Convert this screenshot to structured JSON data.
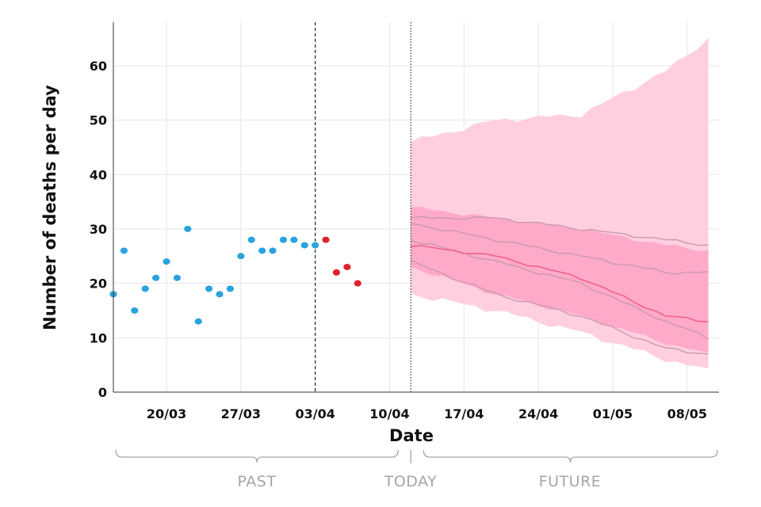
{
  "chart_data": {
    "type": "scatter",
    "title": "",
    "xlabel": "Date",
    "ylabel": "Number of deaths per day",
    "x_tick_labels": [
      "20/03",
      "27/03",
      "03/04",
      "10/04",
      "17/04",
      "24/04",
      "01/05",
      "08/05"
    ],
    "x_tick_dates": [
      "2020-03-20",
      "2020-03-27",
      "2020-04-03",
      "2020-04-10",
      "2020-04-17",
      "2020-04-24",
      "2020-05-01",
      "2020-05-08"
    ],
    "y_ticks": [
      0,
      10,
      20,
      30,
      40,
      50,
      60
    ],
    "xlim": [
      "2020-03-15",
      "2020-05-11"
    ],
    "ylim": [
      0,
      68
    ],
    "grid": true,
    "cutoff_date": "2020-04-03",
    "today_date": "2020-04-12",
    "colors": {
      "observed": "#29a3df",
      "recent": "#e0202a",
      "band_outer": "#ffcfe0",
      "band_inner": "#ffaac8",
      "median": "#f0628f",
      "quartile_lines": "#c89aaa"
    },
    "series": [
      {
        "name": "observed",
        "points": [
          [
            "2020-03-15",
            18
          ],
          [
            "2020-03-16",
            26
          ],
          [
            "2020-03-17",
            15
          ],
          [
            "2020-03-18",
            19
          ],
          [
            "2020-03-19",
            21
          ],
          [
            "2020-03-20",
            24
          ],
          [
            "2020-03-21",
            21
          ],
          [
            "2020-03-22",
            30
          ],
          [
            "2020-03-23",
            13
          ],
          [
            "2020-03-24",
            19
          ],
          [
            "2020-03-25",
            18
          ],
          [
            "2020-03-26",
            19
          ],
          [
            "2020-03-27",
            25
          ],
          [
            "2020-03-28",
            28
          ],
          [
            "2020-03-29",
            26
          ],
          [
            "2020-03-30",
            26
          ],
          [
            "2020-03-31",
            28
          ],
          [
            "2020-04-01",
            28
          ],
          [
            "2020-04-02",
            27
          ],
          [
            "2020-04-03",
            27
          ]
        ]
      },
      {
        "name": "recent",
        "points": [
          [
            "2020-04-04",
            28
          ],
          [
            "2020-04-05",
            22
          ],
          [
            "2020-04-06",
            23
          ],
          [
            "2020-04-07",
            20
          ]
        ]
      }
    ],
    "forecast": {
      "dates": [
        "2020-04-12",
        "2020-04-20",
        "2020-04-28",
        "2020-05-06",
        "2020-05-10"
      ],
      "outer_upper": [
        46,
        50,
        51,
        59,
        65
      ],
      "outer_lower": [
        18,
        15,
        11,
        6,
        4
      ],
      "inner_upper": [
        34,
        32,
        30,
        27,
        26
      ],
      "inner_lower": [
        23,
        18,
        14,
        9,
        7
      ],
      "median": [
        27,
        25,
        21,
        14,
        13
      ],
      "quartile_lines": [
        [
          32,
          32,
          30,
          28,
          27
        ],
        [
          31,
          28,
          25,
          22,
          22
        ],
        [
          28,
          24,
          20,
          13,
          10
        ],
        [
          24,
          18,
          14,
          8,
          7
        ]
      ]
    },
    "period_labels": {
      "past": "PAST",
      "today": "TODAY",
      "future": "FUTURE"
    }
  }
}
